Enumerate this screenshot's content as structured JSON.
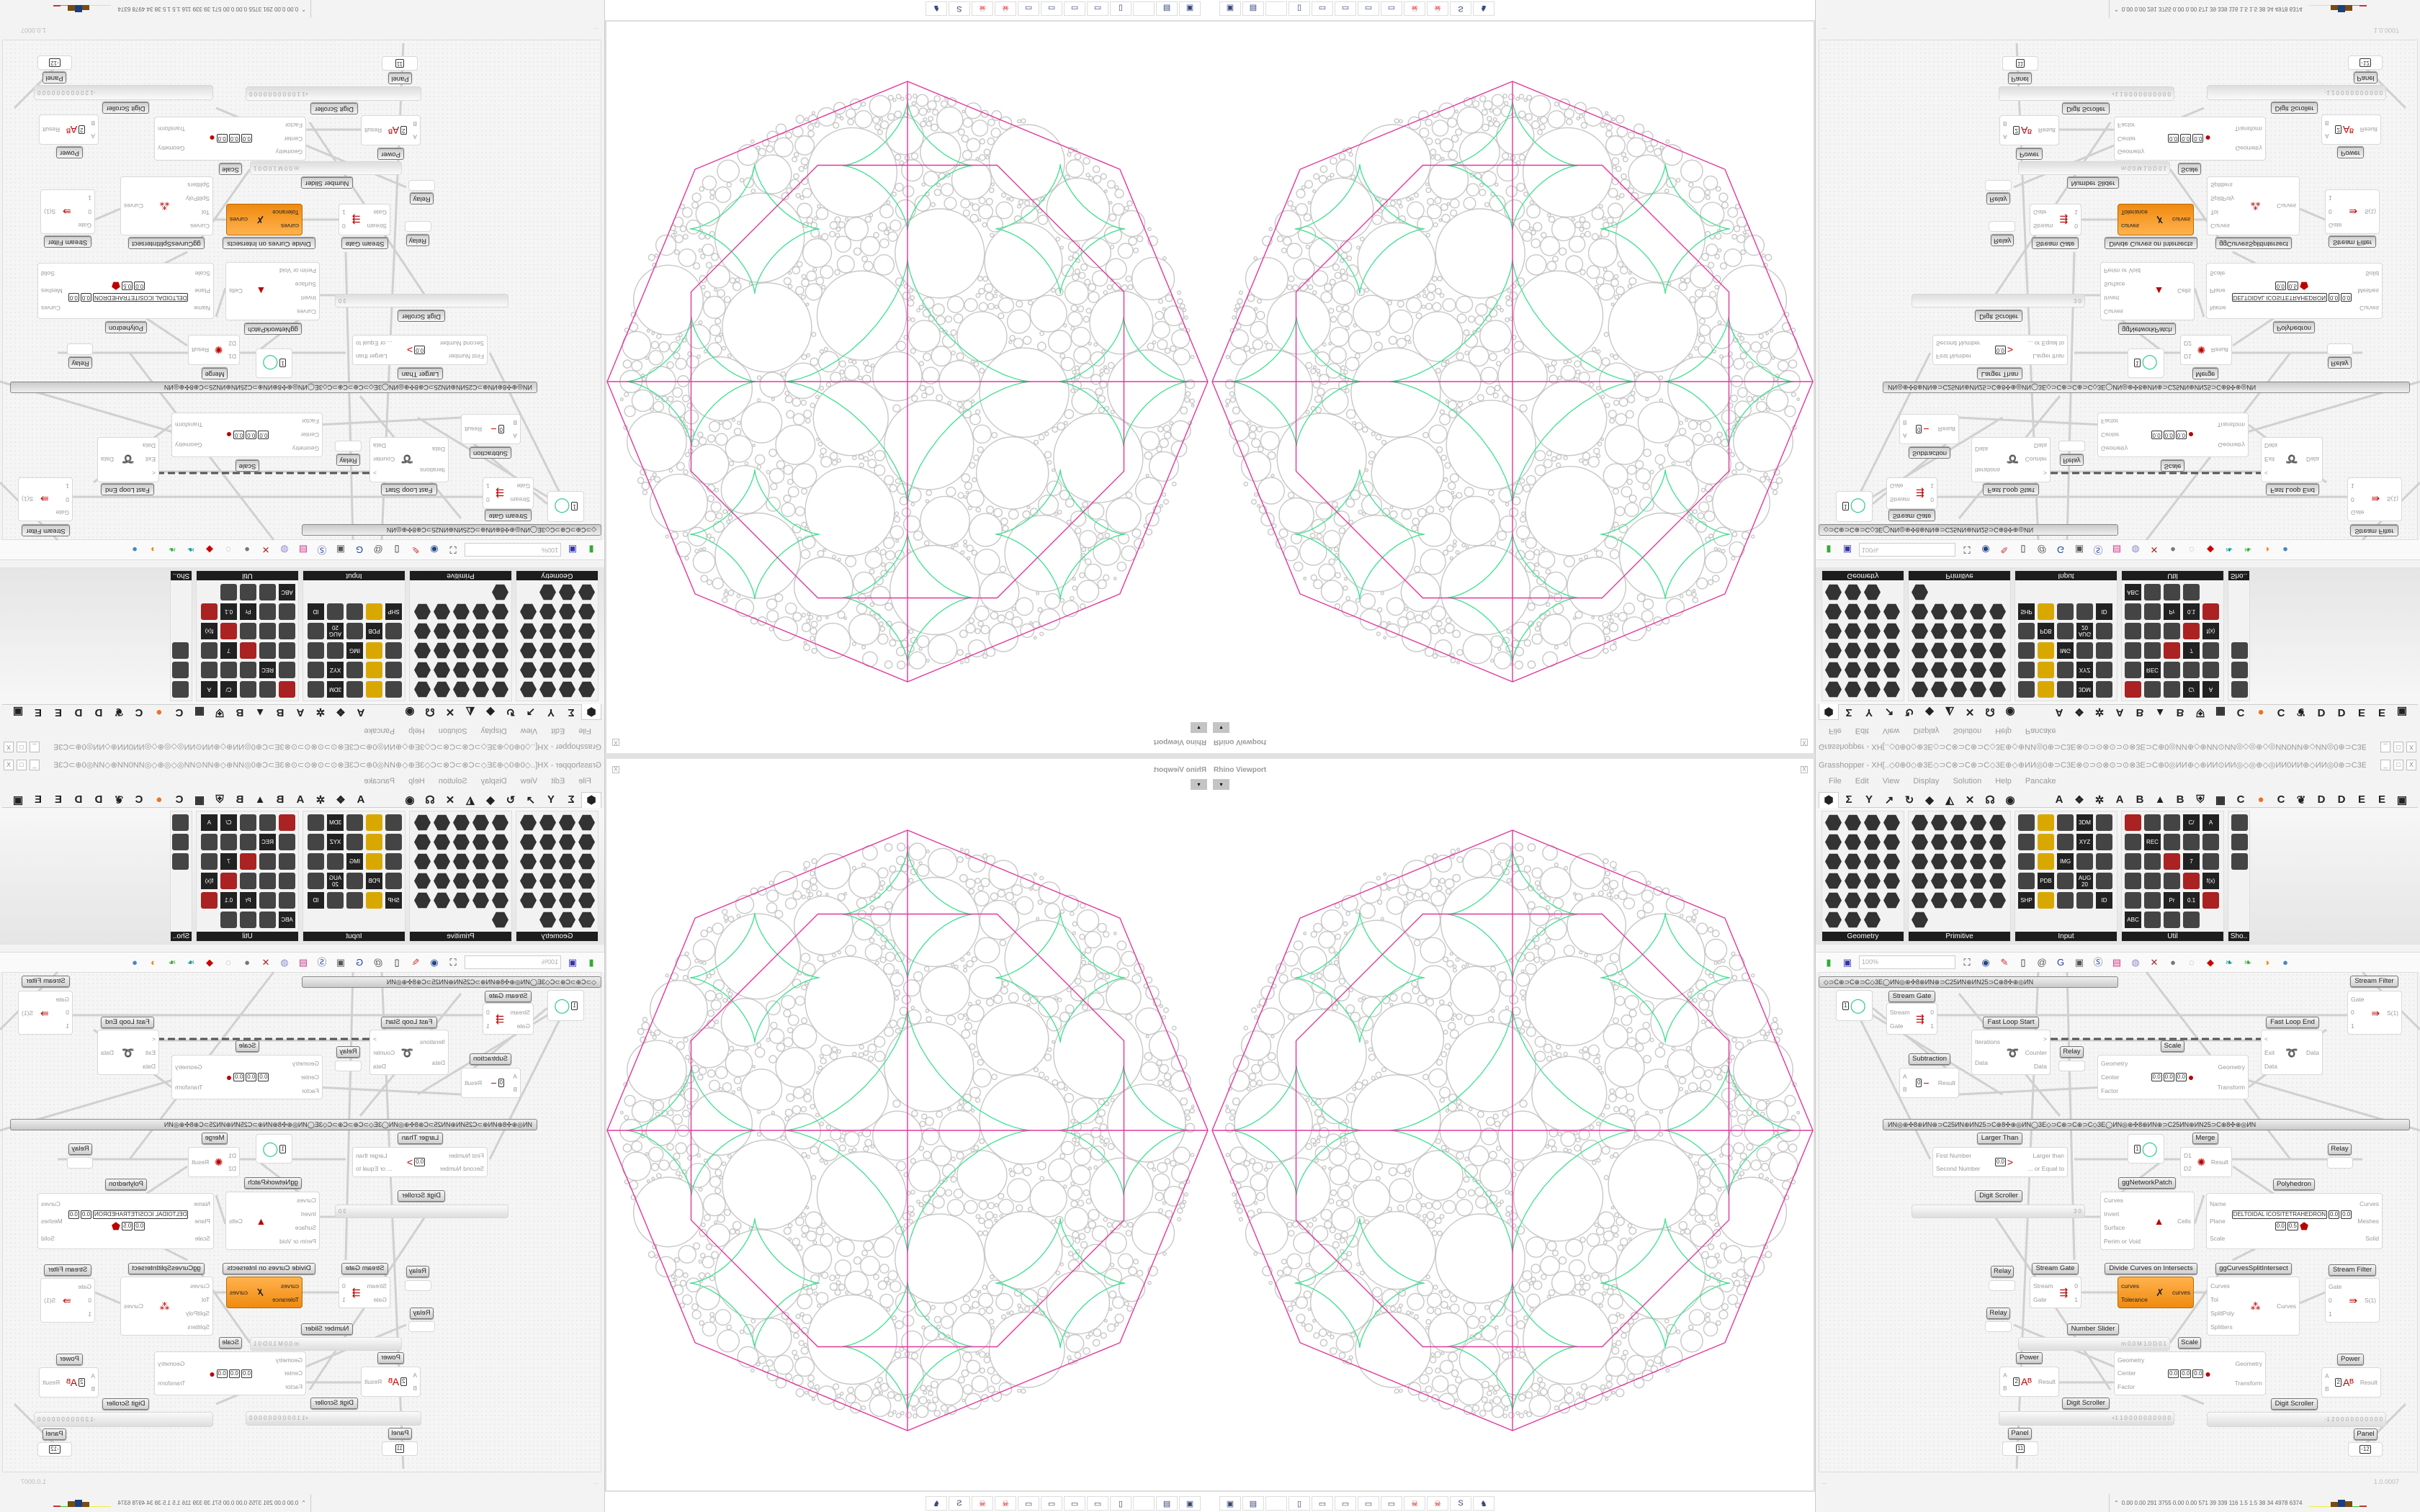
{
  "viewport": {
    "title": "Rhino Viewport",
    "close_label": "X",
    "dropdown_label": "▾",
    "colors": {
      "circles": "#c8c8c8",
      "polyhedron": "#e0399a",
      "pattern": "#3de08f"
    },
    "bottom_icons": [
      "rhino-app-icon",
      "save-64-icon",
      "blank-icon",
      "folder-icon",
      "notepad-icon",
      "notepad-icon",
      "notepad-icon",
      "notepad-icon",
      "skull-red-icon",
      "skull-red-icon",
      "sa-icon",
      "figure-icon"
    ]
  },
  "grasshopper": {
    "title": "Grasshopper - XH[..◇0⊕0◇⊕3E◇⊃C⊗⊃C⊗⊃C◇3E⊕◇⊕ИИ◎0⊕⊃C3E⊗⊙⊃⊙⊗⊙⊃⊙⊗3E⊃C⊕0◎ИИ⊕◇⊕ИИ⊙ИИ◎◇◎⊕◇◎ИИ0ИИ⊕◇ИИ◎0⊕⊃C3E⊗⊙⊃⊙⊗⊙..",
    "window_buttons": [
      "_",
      "□",
      "X"
    ],
    "menu": [
      "File",
      "Edit",
      "View",
      "Display",
      "Solution",
      "Help",
      "Pancake"
    ],
    "tab_icons": [
      "⬢",
      "Σ",
      "Y",
      "↗",
      "↻",
      "◆",
      "◭",
      "✕",
      "☊",
      "◉"
    ],
    "tab_letters": [
      "A",
      "❖",
      "✲",
      "A",
      "B",
      "▲",
      "B",
      "⛨",
      "▦",
      "C",
      "●",
      "C",
      "❦",
      "D",
      "D",
      "E",
      "E",
      "▣"
    ],
    "palette": [
      {
        "label": "Geometry",
        "icons": [
          "vector-icon",
          "line-icon",
          "plane-icon",
          "spiral-icon",
          "point-icon",
          "surface-icon",
          "box-icon",
          "field-icon",
          "arrow-icon",
          "diamond-icon",
          "abc-icon",
          "curve-icon",
          "circle-icon",
          "cube-icon",
          "geom-icon",
          "mesh-icon",
          "arc-icon",
          "brep-icon",
          "twist-icon",
          "swirl-icon",
          "ring-icon",
          "net-icon",
          "magnet-icon"
        ]
      },
      {
        "label": "Primitive",
        "icons": [
          "p1-icon",
          "p2-icon",
          "p3-icon",
          "p4-icon",
          "p5-icon",
          "p6-icon",
          "p7-icon",
          "p8-icon",
          "p9-icon",
          "p10-icon",
          "p11-icon",
          "p12-icon",
          "p13-icon",
          "p14-icon",
          "p15-icon",
          "p16-icon",
          "p17-icon",
          "p18-icon",
          "p19-icon",
          "p20-icon",
          "p21-icon",
          "p22-icon",
          "p23-icon",
          "p24-icon",
          "p25-icon",
          "p26-icon"
        ]
      },
      {
        "label": "Input",
        "icons": [
          "import-icon",
          "button-icon",
          "color-icon",
          {
            "t": "3DM"
          },
          "loop-icon",
          "graph-icon",
          "gradient-icon",
          "toggle-icon",
          {
            "t": "XYZ"
          },
          "toggle-icon",
          "slider-icon",
          "wheel-icon",
          {
            "t": "IMG"
          },
          "knob-icon",
          "checker-icon",
          "curve-icon",
          {
            "t": "PDB"
          },
          "run-icon",
          {
            "t": "AUG 20"
          },
          "dial-icon",
          {
            "t": "SHP"
          },
          "list-icon",
          "clock-icon",
          "rgb-icon",
          {
            "t": "ID"
          }
        ]
      },
      {
        "label": "Util",
        "icons": [
          "cherry-icon",
          "u-icon",
          "arrow-icon",
          {
            "t": "C/"
          },
          {
            "t": "A"
          },
          "play-icon",
          {
            "t": "REC"
          },
          "search-icon",
          "spiral-icon",
          "ball-icon",
          "axes-icon",
          "pencil-icon",
          "compass-icon",
          {
            "t": "7"
          },
          "flask-icon",
          "tree-icon",
          "y-icon",
          "egg-icon",
          "key-icon",
          {
            "t": "f(x)"
          },
          "blob-icon",
          "undo-icon",
          {
            "t": "Pr"
          },
          {
            "t": "0.1"
          },
          "palette-icon",
          {
            "t": "ABC"
          },
          "arrow-right-icon",
          "gauge-icon",
          "x-icon"
        ]
      },
      {
        "label": "Sho..",
        "icons": [
          "goggles-icon",
          "goggles-icon",
          "screen-icon"
        ]
      }
    ],
    "toolbar": {
      "zoom": "100%",
      "icons": [
        "new-file-icon",
        "save-icon",
        "zoom-extents-icon",
        "eye-icon",
        "brush-icon",
        "bug-icon",
        "at-icon",
        "gha-icon",
        "frame-icon",
        "search-s-icon",
        "box-icon",
        "bulb-icon",
        "cross-icon",
        "gray-blob-icon",
        "white-blob-icon",
        "red-gem-icon",
        "teal-ribbon-icon",
        "green-ribbon-icon",
        "sphere-icon",
        "blue-drop-icon"
      ]
    },
    "group_bars": [
      "◇⊃C⊕⊃C⊕⊃C◇3E◯ИN◎⊕✣8⊕ИN⊕⊃C25ИN⊕ИN25⊃C⊕8✣⊕◎ИN",
      "ИN◎⊕✣8⊕ИN⊕⊃C25ИN⊕ИN25⊃C⊕8✣⊕◎ИN◯3E◇⊃C⊕⊃C⊕⊃C◇3E◯ИN◎⊕✣8⊕ИN⊕⊃C25ИN⊕ИN25⊃C⊕8✣⊕◎ИN"
    ],
    "canvas": {
      "components": [
        {
          "title": "Stream Gate",
          "inputs": [
            "Stream",
            "Gate"
          ],
          "outputs": [
            "0",
            "1"
          ],
          "icon": "⇶"
        },
        {
          "title": "",
          "inputs": [],
          "outputs": [],
          "params": [
            "1"
          ],
          "icon": "◯"
        },
        {
          "title": "Fast Loop Start",
          "inputs": [
            "Iterations",
            "Data"
          ],
          "outputs": [
            ">",
            "Counter",
            "Data"
          ],
          "icon": "➰"
        },
        {
          "title": "Relay",
          "inputs": [],
          "outputs": []
        },
        {
          "title": "Scale",
          "inputs": [
            "Geometry",
            "Center",
            "Factor"
          ],
          "outputs": [
            "Geometry",
            "Transform"
          ],
          "params": [
            "0.0",
            "0.0",
            "0.0"
          ],
          "icon": "●"
        },
        {
          "title": "Fast Loop End",
          "inputs": [
            "<",
            "Exit",
            "Data"
          ],
          "outputs": [
            "Data"
          ],
          "icon": "➰"
        },
        {
          "title": "Stream Filter",
          "inputs": [
            "Gate",
            "0",
            "1"
          ],
          "outputs": [
            "S(1)"
          ],
          "icon": "⇛"
        },
        {
          "title": "Subtraction",
          "inputs": [
            "A",
            "B"
          ],
          "outputs": [
            "Result"
          ],
          "params": [
            "0"
          ],
          "icon": "−"
        },
        {
          "title": "Larger Than",
          "inputs": [
            "First Number",
            "Second Number"
          ],
          "outputs": [
            "Larger than",
            "... or Equal to"
          ],
          "params": [
            "0.0"
          ],
          "icon": ">"
        },
        {
          "title": "",
          "inputs": [],
          "outputs": [],
          "params": [
            "1"
          ],
          "icon": "◯"
        },
        {
          "title": "Merge",
          "inputs": [
            "D1",
            "D2"
          ],
          "outputs": [
            "Result"
          ],
          "icon": "✺"
        },
        {
          "title": "Relay",
          "inputs": [],
          "outputs": []
        },
        {
          "title": "ggNetworkPatch",
          "inputs": [
            "Curves",
            "Invert",
            "Surface",
            "Perim or Void"
          ],
          "outputs": [
            "Cells"
          ],
          "icon": "▲"
        },
        {
          "title": "Polyhedron",
          "inputs": [
            "Name",
            "Plane",
            "Scale"
          ],
          "outputs": [
            "Curves",
            "Meshes",
            "Solid"
          ],
          "params": [
            "DELTOIDAL ICOSITETRAHEDRON",
            "0.0",
            "0.0",
            "0.0",
            "0.5"
          ],
          "icon": "⬟"
        },
        {
          "title": "Digit Scroller",
          "inputs": [],
          "outputs": [],
          "params": [
            "3",
            "0"
          ]
        },
        {
          "title": "Relay",
          "inputs": [],
          "outputs": []
        },
        {
          "title": "Stream Gate",
          "inputs": [
            "Stream",
            "Gate"
          ],
          "outputs": [
            "0",
            "1"
          ],
          "icon": "⇶"
        },
        {
          "title": "Divide Curves on Intersects",
          "inputs": [
            "curves",
            "Tolerance"
          ],
          "outputs": [
            "curves"
          ],
          "icon": "✗"
        },
        {
          "title": "ggCurvesSplitIntersect",
          "inputs": [
            "Curves",
            "Tol",
            "SplitPoly",
            "Splitters"
          ],
          "outputs": [
            "Curves"
          ],
          "icon": "⁂"
        },
        {
          "title": "Stream Filter",
          "inputs": [
            "Gate",
            "0",
            "1"
          ],
          "outputs": [
            "S(1)"
          ],
          "icon": "⇛"
        },
        {
          "title": "Relay",
          "inputs": [],
          "outputs": []
        },
        {
          "title": "Number Slider",
          "inputs": [],
          "outputs": [],
          "params": [
            "m 0.0",
            "M 1.0",
            "D 0",
            "1"
          ]
        },
        {
          "title": "Scale",
          "inputs": [
            "Geometry",
            "Center",
            "Factor"
          ],
          "outputs": [
            "Geometry",
            "Transform"
          ],
          "params": [
            "0.0",
            "0.0",
            "0.0"
          ],
          "icon": "●"
        },
        {
          "title": "Power",
          "inputs": [
            "A",
            "B"
          ],
          "outputs": [
            "Result"
          ],
          "params": [
            "2"
          ],
          "icon": "Aᴮ"
        },
        {
          "title": "Power",
          "inputs": [
            "A",
            "B"
          ],
          "outputs": [
            "Result"
          ],
          "params": [
            "2"
          ],
          "icon": "Aᴮ"
        },
        {
          "title": "Digit Scroller",
          "inputs": [],
          "outputs": [],
          "params": [
            "+1 1",
            "0 0 0 0 0 0 0 0 0 0"
          ]
        },
        {
          "title": "Digit Scroller",
          "inputs": [],
          "outputs": [],
          "params": [
            "-1 2",
            "0 0 0 0 0 0 0 0 0 0"
          ]
        },
        {
          "title": "Panel",
          "inputs": [],
          "outputs": [],
          "params": [
            "11"
          ]
        },
        {
          "title": "Panel",
          "inputs": [],
          "outputs": [],
          "params": [
            "-12"
          ]
        }
      ]
    },
    "status": {
      "left": "...",
      "right": "1.0.0007"
    },
    "stats": "0.00 0.00 291 3755 0.00 0.00 571  39  339  116  1.5  1.5  38  34  4978 6374"
  }
}
